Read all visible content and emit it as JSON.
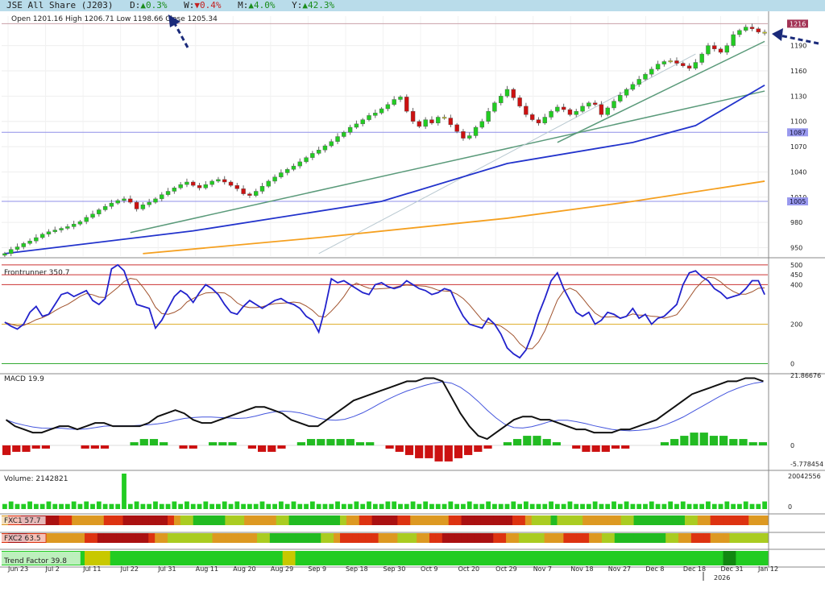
{
  "header": {
    "title": "JSE All Share (J203)",
    "day_label": "D:",
    "day_value": "▲0.3%",
    "week_label": "W:",
    "week_value": "▼0.4%",
    "month_label": "M:",
    "month_value": "▲4.0%",
    "year_label": "Y:",
    "year_value": "▲42.3%"
  },
  "ohlc": {
    "text": "Open 1201.16  High 1206.71  Low 1198.66  Close 1205.34"
  },
  "colors": {
    "header_bg": "#b9dcea",
    "bull": "#22cc22",
    "neutral": "#cccc22",
    "bear": "#cc1111",
    "ma_blue": "#2233cc",
    "ma_orange": "#f5a020",
    "trend_green": "#5a9a7a",
    "arrow": "#1a2a7a",
    "tag_red": "#a33355",
    "tag_blue": "#9999ee"
  },
  "chart_data": [
    {
      "type": "candlestick",
      "title": "JSE All Share (J203)",
      "ylim": [
        940,
        1225
      ],
      "yticks": [
        950,
        980,
        1010,
        1040,
        1070,
        1100,
        1130,
        1160,
        1190
      ],
      "xticks": [
        "Jun 23",
        "Jul 2",
        "Jul 11",
        "Jul 22",
        "Jul 31",
        "Aug 11",
        "Aug 20",
        "Aug 29",
        "Sep 9",
        "Sep 18",
        "Sep 30",
        "Oct 9",
        "Oct 20",
        "Oct 29",
        "Nov 7",
        "Nov 18",
        "Nov 27",
        "Dec 8",
        "Dec 18",
        "Dec 31",
        "Jan 12"
      ],
      "year_label": "2026",
      "close": [
        943,
        948,
        951,
        955,
        958,
        962,
        966,
        969,
        971,
        973,
        975,
        978,
        981,
        986,
        990,
        995,
        999,
        1003,
        1006,
        1008,
        1004,
        996,
        1001,
        1004,
        1008,
        1013,
        1017,
        1021,
        1025,
        1028,
        1024,
        1021,
        1025,
        1029,
        1031,
        1028,
        1024,
        1020,
        1014,
        1012,
        1017,
        1023,
        1029,
        1034,
        1039,
        1043,
        1047,
        1052,
        1057,
        1062,
        1066,
        1071,
        1076,
        1082,
        1087,
        1093,
        1097,
        1102,
        1107,
        1110,
        1115,
        1120,
        1126,
        1129,
        1112,
        1100,
        1094,
        1102,
        1098,
        1105,
        1104,
        1096,
        1088,
        1080,
        1083,
        1093,
        1100,
        1112,
        1122,
        1130,
        1138,
        1128,
        1118,
        1108,
        1102,
        1098,
        1105,
        1112,
        1117,
        1114,
        1108,
        1112,
        1118,
        1122,
        1120,
        1108,
        1116,
        1124,
        1131,
        1138,
        1144,
        1150,
        1156,
        1162,
        1168,
        1171,
        1172,
        1169,
        1166,
        1163,
        1170,
        1180,
        1190,
        1186,
        1182,
        1190,
        1203,
        1208,
        1212,
        1210,
        1206,
        1205
      ],
      "hlines": [
        {
          "value": 1087,
          "label": "1087"
        },
        {
          "value": 1005,
          "label": "1005"
        },
        {
          "value": 1216,
          "label": "1216"
        }
      ],
      "ma_slow": [
        [
          0,
          943
        ],
        [
          30,
          970
        ],
        [
          60,
          1005
        ],
        [
          80,
          1050
        ],
        [
          100,
          1075
        ],
        [
          110,
          1095
        ],
        [
          121,
          1143
        ]
      ],
      "ma_long": [
        [
          22,
          943
        ],
        [
          50,
          962
        ],
        [
          80,
          985
        ],
        [
          100,
          1005
        ],
        [
          121,
          1029
        ]
      ],
      "trend_lines": [
        [
          [
            20,
            968
          ],
          [
            121,
            1136
          ]
        ],
        [
          [
            88,
            1075
          ],
          [
            121,
            1195
          ]
        ],
        [
          [
            50,
            943
          ],
          [
            110,
            1180
          ]
        ]
      ]
    },
    {
      "type": "line",
      "title": "Frontrunner 350.7",
      "ylim": [
        -10,
        520
      ],
      "yticks": [
        0,
        200,
        400,
        450,
        500
      ],
      "hlines": [
        500,
        450,
        400,
        200,
        0
      ],
      "series": [
        {
          "values": [
            210,
            190,
            175,
            200,
            260,
            290,
            240,
            250,
            300,
            350,
            360,
            340,
            355,
            370,
            320,
            300,
            330,
            480,
            500,
            470,
            380,
            300,
            290,
            280,
            180,
            220,
            280,
            340,
            370,
            350,
            310,
            360,
            400,
            380,
            350,
            300,
            260,
            250,
            290,
            320,
            300,
            280,
            300,
            320,
            330,
            310,
            300,
            280,
            240,
            220,
            160,
            280,
            430,
            410,
            420,
            400,
            380,
            360,
            350,
            400,
            410,
            390,
            380,
            390,
            420,
            400,
            380,
            370,
            350,
            360,
            380,
            370,
            300,
            240,
            200,
            190,
            180,
            230,
            200,
            150,
            80,
            50,
            30,
            70,
            150,
            250,
            330,
            420,
            460,
            380,
            320,
            260,
            240,
            260,
            200,
            220,
            260,
            250,
            230,
            240,
            280,
            230,
            250,
            200,
            230,
            240,
            270,
            300,
            400,
            460,
            470,
            440,
            420,
            380,
            360,
            330,
            340,
            350,
            380,
            420,
            420,
            350
          ]
        }
      ]
    },
    {
      "type": "bar",
      "title": "MACD 19.9",
      "ylim": [
        -5.778454,
        21.86676
      ],
      "yticks": [
        "21.86676",
        "0",
        "-5.778454"
      ],
      "series": [
        {
          "values": [
            8,
            6,
            5,
            4,
            4,
            5,
            6,
            6,
            5,
            6,
            7,
            7,
            6,
            6,
            6,
            6,
            7,
            9,
            10,
            11,
            10,
            8,
            7,
            7,
            8,
            9,
            10,
            11,
            12,
            12,
            11,
            10,
            8,
            7,
            6,
            6,
            8,
            10,
            12,
            14,
            15,
            16,
            17,
            18,
            19,
            20,
            20,
            21,
            21,
            20,
            15,
            10,
            6,
            3,
            2,
            4,
            6,
            8,
            9,
            9,
            8,
            8,
            7,
            6,
            5,
            5,
            4,
            4,
            4,
            5,
            5,
            6,
            7,
            8,
            10,
            12,
            14,
            16,
            17,
            18,
            19,
            20,
            20,
            21,
            21,
            20
          ]
        },
        {
          "values": [
            -3,
            -2,
            -2,
            -1,
            -1,
            0,
            0,
            0,
            -1,
            -1,
            -1,
            0,
            0,
            1,
            2,
            2,
            1,
            0,
            -1,
            -1,
            0,
            1,
            1,
            1,
            0,
            -1,
            -2,
            -2,
            -1,
            0,
            1,
            2,
            2,
            2,
            2,
            2,
            1,
            1,
            0,
            -1,
            -2,
            -3,
            -4,
            -4,
            -5,
            -5,
            -4,
            -3,
            -2,
            -1,
            0,
            1,
            2,
            3,
            3,
            2,
            1,
            0,
            -1,
            -2,
            -2,
            -2,
            -1,
            -1,
            0,
            0,
            0,
            1,
            2,
            3,
            4,
            4,
            3,
            3,
            2,
            2,
            1,
            1
          ]
        }
      ]
    },
    {
      "type": "bar",
      "title": "Volume: 2142821",
      "ylim": [
        0,
        20042556
      ],
      "yticks": [
        "20042556",
        "0"
      ],
      "series": [
        {
          "values": [
            2,
            3,
            2,
            2,
            3,
            2,
            2,
            3,
            2,
            2,
            2,
            3,
            2,
            3,
            2,
            3,
            2,
            2,
            2,
            14,
            2,
            3,
            2,
            2,
            3,
            2,
            2,
            3,
            2,
            3,
            2,
            2,
            3,
            2,
            2,
            3,
            2,
            3,
            2,
            2,
            2,
            3,
            2,
            2,
            3,
            2,
            3,
            2,
            2,
            3,
            2,
            2,
            2,
            3,
            2,
            2,
            3,
            2,
            3,
            2,
            2,
            3,
            3,
            2,
            2,
            3,
            2,
            3,
            2,
            2,
            2,
            3,
            2,
            2,
            3,
            2,
            2,
            3,
            2,
            2,
            2,
            3,
            2,
            3,
            2,
            2,
            2,
            3,
            2,
            2,
            3,
            2,
            2,
            2,
            3,
            2,
            2,
            3,
            2,
            3,
            2,
            2,
            2,
            3,
            2,
            2,
            3,
            2,
            3,
            2,
            2,
            2,
            3,
            2,
            2,
            3,
            2,
            2,
            3,
            2,
            2,
            3
          ]
        }
      ]
    },
    {
      "type": "heatmap",
      "title": "FXC1 57.7"
    },
    {
      "type": "heatmap",
      "title": "FXC2 63.5"
    },
    {
      "type": "heatmap",
      "title": "Trend Factor 39.8"
    }
  ]
}
